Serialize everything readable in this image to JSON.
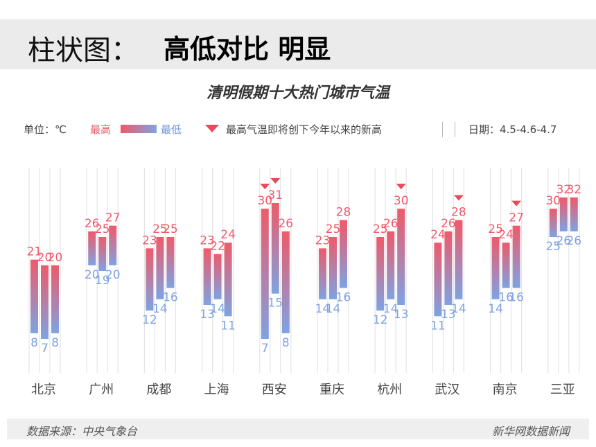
{
  "header": {
    "prefix": "柱状图：",
    "emphasis": "高低对比 明显"
  },
  "legend": {
    "unit": "单位：℃",
    "high": "最高",
    "low": "最低",
    "record_note": "最高气温即将创下今年以来的新高",
    "date": "日期：4.5-4.6-4.7"
  },
  "colors": {
    "high": "#ef5a6a",
    "low": "#7ea3e2",
    "marker": "#e84a5c",
    "grid": "#e4e4e4"
  },
  "footer": {
    "source": "数据来源：中央气象台",
    "publisher": "新华网数据新闻"
  },
  "chart_data": {
    "type": "bar",
    "subtype": "floating-range",
    "title": "清明假期十大热门城市气温",
    "unit": "℃",
    "categories": [
      "北京",
      "广州",
      "成都",
      "上海",
      "西安",
      "重庆",
      "杭州",
      "武汉",
      "南京",
      "三亚"
    ],
    "days": [
      "4.5",
      "4.6",
      "4.7"
    ],
    "high": [
      [
        21,
        20,
        20
      ],
      [
        26,
        25,
        27
      ],
      [
        23,
        25,
        25
      ],
      [
        23,
        22,
        24
      ],
      [
        30,
        31,
        26
      ],
      [
        23,
        25,
        28
      ],
      [
        25,
        26,
        30
      ],
      [
        24,
        26,
        28
      ],
      [
        25,
        24,
        27
      ],
      [
        30,
        32,
        32
      ]
    ],
    "low": [
      [
        8,
        7,
        8
      ],
      [
        20,
        19,
        20
      ],
      [
        12,
        14,
        16
      ],
      [
        13,
        14,
        11
      ],
      [
        7,
        15,
        8
      ],
      [
        14,
        14,
        16
      ],
      [
        12,
        14,
        13
      ],
      [
        11,
        13,
        14
      ],
      [
        14,
        16,
        16
      ],
      [
        25,
        26,
        26
      ]
    ],
    "record_high": [
      [
        false,
        false,
        false
      ],
      [
        false,
        false,
        false
      ],
      [
        false,
        false,
        false
      ],
      [
        false,
        false,
        false
      ],
      [
        true,
        true,
        false
      ],
      [
        false,
        false,
        false
      ],
      [
        false,
        false,
        true
      ],
      [
        false,
        false,
        true
      ],
      [
        false,
        false,
        true
      ],
      [
        false,
        false,
        false
      ]
    ],
    "grid": true
  }
}
